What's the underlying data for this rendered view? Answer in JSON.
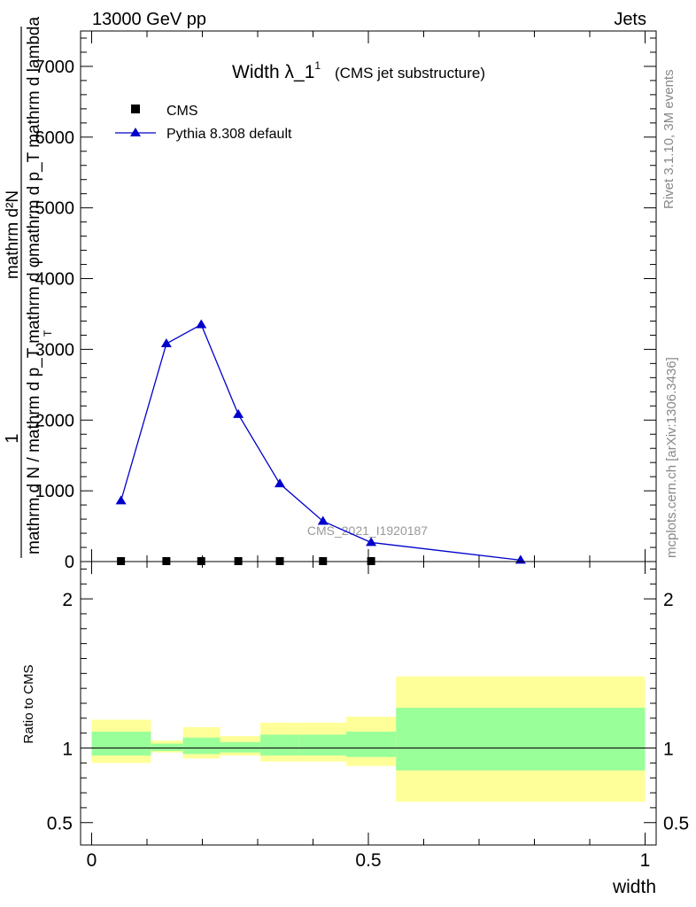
{
  "header": {
    "left": "13000 GeV pp",
    "right": "Jets"
  },
  "side": {
    "rivet": "Rivet 3.1.10,  3M events",
    "mcplots": "mcplots.cern.ch [arXiv:1306.3436]"
  },
  "chart_data": [
    {
      "type": "line",
      "title": "Width λ_1",
      "title_sup": "1",
      "subtitle": "(CMS jet substructure)",
      "watermark": "CMS_2021_I1920187",
      "ylabel_num": "1",
      "ylabel_den": "mathrm d N / mathrm d p_T mathrm d φ",
      "ylabel_den_sub": "T",
      "ylabel_num2": "mathrm d²N",
      "ylabel_num2_sub": "mathrm d p_T mathrm d lambda",
      "xlim": [
        -0.02,
        1.02
      ],
      "ylim": [
        0,
        7500
      ],
      "yticks": [
        0,
        1000,
        2000,
        3000,
        4000,
        5000,
        6000,
        7000
      ],
      "ytick_labels": [
        "0",
        "1000",
        "2000",
        "3000",
        "4000",
        "5000",
        "6000",
        "7000"
      ],
      "legend": "top-left",
      "series": [
        {
          "name": "CMS",
          "marker": "square",
          "color": "#000000",
          "x": [
            0.053,
            0.135,
            0.198,
            0.265,
            0.34,
            0.418,
            0.505
          ],
          "values": [
            0,
            0,
            0,
            0,
            0,
            0,
            0
          ]
        },
        {
          "name": "Pythia 8.308 default",
          "marker": "triangle",
          "color": "#0000cc",
          "x": [
            0.053,
            0.135,
            0.198,
            0.265,
            0.34,
            0.418,
            0.505,
            0.775
          ],
          "values": [
            860,
            3080,
            3350,
            2080,
            1100,
            570,
            270,
            20
          ]
        }
      ]
    },
    {
      "type": "area",
      "ylabel": "Ratio to CMS",
      "xlabel": "width",
      "xlim": [
        -0.02,
        1.02
      ],
      "ylim": [
        0.35,
        2.25
      ],
      "yticks": [
        0.5,
        1,
        2
      ],
      "ytick_labels": [
        "0.5",
        "1",
        "2"
      ],
      "xticks": [
        0,
        0.5,
        1
      ],
      "xtick_labels": [
        "0",
        "0.5",
        "1"
      ],
      "reference": 1,
      "band_colors": {
        "outer": "#ffff99",
        "inner": "#99ff99"
      },
      "bins": [
        {
          "lo": 0.0,
          "hi": 0.107,
          "outer": [
            0.9,
            1.19
          ],
          "inner": [
            0.95,
            1.11
          ]
        },
        {
          "lo": 0.107,
          "hi": 0.165,
          "outer": [
            0.97,
            1.05
          ],
          "inner": [
            0.98,
            1.03
          ]
        },
        {
          "lo": 0.165,
          "hi": 0.232,
          "outer": [
            0.93,
            1.14
          ],
          "inner": [
            0.96,
            1.07
          ]
        },
        {
          "lo": 0.232,
          "hi": 0.305,
          "outer": [
            0.95,
            1.08
          ],
          "inner": [
            0.97,
            1.04
          ]
        },
        {
          "lo": 0.305,
          "hi": 0.375,
          "outer": [
            0.91,
            1.17
          ],
          "inner": [
            0.95,
            1.09
          ]
        },
        {
          "lo": 0.375,
          "hi": 0.46,
          "outer": [
            0.91,
            1.17
          ],
          "inner": [
            0.95,
            1.09
          ]
        },
        {
          "lo": 0.46,
          "hi": 0.55,
          "outer": [
            0.88,
            1.21
          ],
          "inner": [
            0.94,
            1.11
          ]
        },
        {
          "lo": 0.55,
          "hi": 1.0,
          "outer": [
            0.64,
            1.48
          ],
          "inner": [
            0.85,
            1.27
          ]
        }
      ]
    }
  ]
}
